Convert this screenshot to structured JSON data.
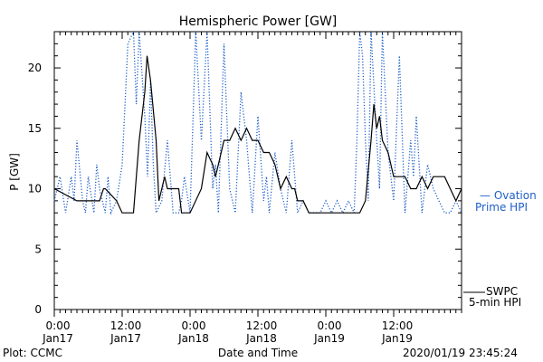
{
  "chart_data": {
    "type": "line",
    "title": "Hemispheric Power [GW]",
    "ylabel": "P [GW]",
    "xlabel": "Date and Time",
    "ylim": [
      0,
      23
    ],
    "yticks": [
      0,
      5,
      10,
      15,
      20
    ],
    "xlim": [
      0,
      72
    ],
    "xtick_hours": [
      0,
      12,
      24,
      36,
      48,
      60
    ],
    "xtick_labels": [
      {
        "time": "0:00",
        "date": "Jan17"
      },
      {
        "time": "12:00",
        "date": "Jan17"
      },
      {
        "time": "0:00",
        "date": "Jan18"
      },
      {
        "time": "12:00",
        "date": "Jan18"
      },
      {
        "time": "0:00",
        "date": "Jan19"
      },
      {
        "time": "12:00",
        "date": "Jan19"
      }
    ],
    "series": [
      {
        "name": "SWPC 5-min HPI",
        "style": "solid",
        "color": "#000000",
        "x": [
          0,
          4,
          5,
          7,
          8,
          8.7,
          9,
          11,
          12,
          14,
          15,
          16,
          16.4,
          17,
          18,
          18.5,
          19,
          19.5,
          20,
          21,
          22,
          22.5,
          23,
          24,
          26,
          27,
          28,
          28.5,
          29,
          30,
          31,
          32,
          33,
          34,
          35,
          36,
          37,
          38,
          39,
          40,
          41,
          42,
          42.5,
          43,
          44,
          45,
          46,
          47,
          48,
          50,
          52,
          54,
          55,
          56,
          56.5,
          57,
          57.5,
          58,
          59,
          60,
          61,
          62,
          63,
          64,
          65,
          66,
          67,
          68,
          69,
          70,
          71,
          72
        ],
        "y": [
          10,
          9,
          9,
          9,
          9,
          10,
          10,
          9,
          8,
          8,
          14,
          18,
          21,
          19,
          14,
          9,
          10,
          11,
          10,
          10,
          10,
          8,
          8,
          8,
          10,
          13,
          12,
          11,
          12,
          14,
          14,
          15,
          14,
          15,
          14,
          14,
          13,
          13,
          12,
          10,
          11,
          10,
          10,
          9,
          9,
          8,
          8,
          8,
          8,
          8,
          8,
          8,
          9,
          14,
          17,
          15,
          16,
          14,
          13,
          11,
          11,
          11,
          10,
          10,
          11,
          10,
          11,
          11,
          11,
          10,
          9,
          10
        ]
      },
      {
        "name": "Ovation Prime HPI",
        "style": "dotted",
        "color": "#1f5fc8",
        "x": [
          0,
          1,
          2,
          3,
          3.5,
          4,
          5,
          5.5,
          6,
          7,
          7.5,
          8,
          9,
          9.5,
          10,
          11,
          12,
          13,
          14,
          14.5,
          15,
          16,
          16.5,
          17,
          17.5,
          18,
          19,
          20,
          21,
          22,
          22.5,
          23,
          24,
          25,
          26,
          27,
          28,
          28.5,
          29,
          30,
          30.5,
          31,
          32,
          33,
          34,
          34.5,
          35,
          36,
          37,
          37.5,
          38,
          39,
          40,
          41,
          42,
          43,
          44,
          45,
          46,
          47,
          48,
          49,
          50,
          51,
          52,
          53,
          53.5,
          54,
          54.5,
          55,
          55.5,
          56,
          57,
          57.5,
          58,
          59,
          60,
          61,
          62,
          63,
          63.5,
          64,
          65,
          66,
          67,
          68,
          69,
          70,
          71,
          72
        ],
        "y": [
          9,
          11,
          8,
          11,
          9,
          14,
          9,
          8,
          11,
          8,
          12,
          10,
          8,
          11,
          8,
          9,
          12,
          22,
          23,
          17,
          23,
          16,
          11,
          19,
          12,
          8,
          9,
          14,
          8,
          8,
          9,
          11,
          8,
          23,
          14,
          23,
          10,
          12,
          8,
          22,
          16,
          10,
          8,
          18,
          14,
          11,
          8,
          16,
          9,
          11,
          8,
          13,
          10,
          8,
          14,
          8,
          9,
          8,
          8,
          8,
          9,
          8,
          9,
          8,
          9,
          8,
          14,
          23,
          21,
          14,
          9,
          23,
          14,
          10,
          23,
          13,
          9,
          21,
          8,
          14,
          11,
          16,
          8,
          12,
          10,
          9,
          8,
          8,
          9,
          8
        ]
      }
    ],
    "legend": [
      {
        "line1": "— Ovation",
        "line2": "Prime HPI",
        "color": "#1f5fc8"
      },
      {
        "line1": "SWPC",
        "line2": "5-min HPI",
        "color": "#000000"
      }
    ],
    "footer_left": "Plot: CCMC",
    "footer_right": "2020/01/19 23:45:24"
  }
}
